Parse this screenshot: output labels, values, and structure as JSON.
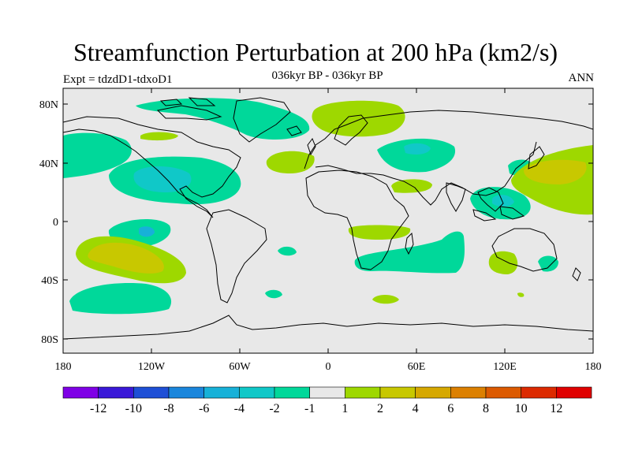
{
  "title": "Streamfunction Perturbation at 200 hPa (km2/s)",
  "subtitle": "036kyr BP - 036kyr BP",
  "left_label": "Expt = tdzdD1-tdxoD1",
  "right_label": "ANN",
  "x_ticks": [
    "180",
    "120W",
    "60W",
    "0",
    "60E",
    "120E",
    "180"
  ],
  "y_ticks": [
    "80N",
    "40N",
    "0",
    "40S",
    "80S"
  ],
  "colorbar": {
    "labels": [
      "-12",
      "-10",
      "-8",
      "-6",
      "-4",
      "-2",
      "-1",
      "1",
      "2",
      "4",
      "6",
      "8",
      "10",
      "12"
    ],
    "colors": [
      "#7f00e6",
      "#3a18d8",
      "#1e4fd6",
      "#1a86dc",
      "#17b1d8",
      "#10c8c8",
      "#00d89a",
      "#e8e8e8",
      "#9ed800",
      "#c8c800",
      "#d6a800",
      "#dc8000",
      "#dc5a00",
      "#dc2a00",
      "#e00000"
    ]
  },
  "colors": {
    "background": "#e8e8e8",
    "neg_weak": "#00d89a",
    "neg_mid": "#10c8c8",
    "neg_strong": "#17b1d8",
    "pos_weak": "#9ed800",
    "pos_mid": "#c8c800"
  }
}
